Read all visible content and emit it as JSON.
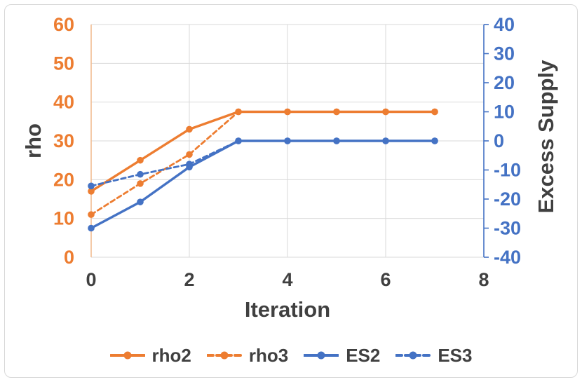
{
  "chart_data": {
    "type": "line",
    "title": "",
    "xlabel": "Iteration",
    "ylabel_left": "rho",
    "ylabel_right": "Excess Supply",
    "x": [
      0,
      1,
      2,
      3,
      4,
      5,
      6,
      7
    ],
    "series": [
      {
        "name": "rho2",
        "axis": "left",
        "color": "#ED7D31",
        "style": "solid",
        "values": [
          17,
          25,
          33,
          37.5,
          37.5,
          37.5,
          37.5,
          37.5
        ]
      },
      {
        "name": "rho3",
        "axis": "left",
        "color": "#ED7D31",
        "style": "dashed",
        "values": [
          11,
          19,
          26.5,
          37.5,
          37.5,
          37.5,
          37.5,
          37.5
        ]
      },
      {
        "name": "ES2",
        "axis": "right",
        "color": "#4472C4",
        "style": "solid",
        "values": [
          -30,
          -21,
          -9,
          0,
          0,
          0,
          0,
          0
        ]
      },
      {
        "name": "ES3",
        "axis": "right",
        "color": "#4472C4",
        "style": "dashed",
        "values": [
          -15.5,
          -11.5,
          -8,
          0,
          0,
          0,
          0,
          0
        ]
      }
    ],
    "xlim": [
      0,
      8
    ],
    "x_ticks": [
      0,
      2,
      4,
      6,
      8
    ],
    "ylim_left": [
      0,
      60
    ],
    "yticks_left": [
      0,
      10,
      20,
      30,
      40,
      50,
      60
    ],
    "ylim_right": [
      -40,
      40
    ],
    "yticks_right": [
      -40,
      -30,
      -20,
      -10,
      0,
      10,
      20,
      30,
      40
    ],
    "grid": true,
    "legend_position": "bottom",
    "marker": "circle"
  },
  "colors": {
    "orange": "#ED7D31",
    "blue": "#4472C4",
    "text": "#404040",
    "grid": "#d9d9d9",
    "left_axis_line": "#f2bd92",
    "background": "#ffffff",
    "frame_border": "#d8d8d8"
  }
}
